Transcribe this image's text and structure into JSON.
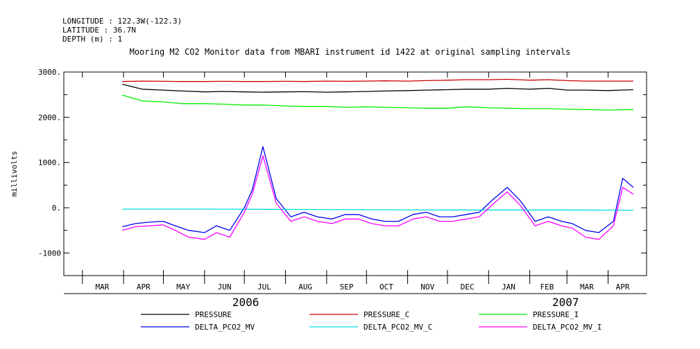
{
  "header": {
    "longitude": "LONGITUDE : 122.3W(-122.3)",
    "latitude": "LATITUDE : 36.7N",
    "depth": "DEPTH (m) : 1"
  },
  "chart_data": {
    "type": "line",
    "title": "Mooring M2 CO2 Monitor data from MBARI instrument id 1422 at original sampling intervals",
    "ylabel": "millivolts",
    "ylim": [
      -1500,
      3000
    ],
    "yticks": [
      -1000,
      0,
      1000,
      2000,
      3000
    ],
    "ytick_labels": [
      "-1000",
      "0.",
      "1000.",
      "2000.",
      "3000."
    ],
    "xlim": [
      "2006-02-15",
      "2007-04-30"
    ],
    "x_month_ticks": [
      "2006-03-01",
      "2006-04-01",
      "2006-05-01",
      "2006-06-01",
      "2006-07-01",
      "2006-08-01",
      "2006-09-01",
      "2006-10-01",
      "2006-11-01",
      "2006-12-01",
      "2007-01-01",
      "2007-02-01",
      "2007-03-01",
      "2007-04-01"
    ],
    "x_month_labels": [
      {
        "label": "MAR",
        "center": "2006-03-16"
      },
      {
        "label": "APR",
        "center": "2006-04-16"
      },
      {
        "label": "MAY",
        "center": "2006-05-16"
      },
      {
        "label": "JUN",
        "center": "2006-06-16"
      },
      {
        "label": "JUL",
        "center": "2006-07-16"
      },
      {
        "label": "AUG",
        "center": "2006-08-16"
      },
      {
        "label": "SEP",
        "center": "2006-09-16"
      },
      {
        "label": "OCT",
        "center": "2006-10-16"
      },
      {
        "label": "NOV",
        "center": "2006-11-16"
      },
      {
        "label": "DEC",
        "center": "2006-12-16"
      },
      {
        "label": "JAN",
        "center": "2007-01-16"
      },
      {
        "label": "FEB",
        "center": "2007-02-14"
      },
      {
        "label": "MAR",
        "center": "2007-03-16"
      },
      {
        "label": "APR",
        "center": "2007-04-12"
      }
    ],
    "year_labels": [
      {
        "label": "2006",
        "center": "2006-07-02"
      },
      {
        "label": "2007",
        "center": "2007-02-28"
      }
    ],
    "series": [
      {
        "name": "PRESSURE",
        "color": "#000000",
        "x": [
          "2006-03-31",
          "2006-04-15",
          "2006-05-01",
          "2006-05-15",
          "2006-06-01",
          "2006-06-15",
          "2006-07-01",
          "2006-07-15",
          "2006-08-01",
          "2006-08-15",
          "2006-09-01",
          "2006-09-15",
          "2006-10-01",
          "2006-10-15",
          "2006-11-01",
          "2006-11-15",
          "2006-12-01",
          "2006-12-15",
          "2007-01-01",
          "2007-01-15",
          "2007-02-01",
          "2007-02-15",
          "2007-03-01",
          "2007-03-15",
          "2007-04-01",
          "2007-04-20"
        ],
        "values": [
          2730,
          2620,
          2600,
          2580,
          2560,
          2570,
          2560,
          2555,
          2560,
          2565,
          2555,
          2560,
          2570,
          2580,
          2590,
          2600,
          2610,
          2620,
          2620,
          2640,
          2620,
          2640,
          2600,
          2600,
          2590,
          2610
        ]
      },
      {
        "name": "PRESSURE_C",
        "color": "#cc0000",
        "x": [
          "2006-03-31",
          "2006-04-15",
          "2006-05-01",
          "2006-05-15",
          "2006-06-01",
          "2006-06-15",
          "2006-07-01",
          "2006-07-15",
          "2006-08-01",
          "2006-08-15",
          "2006-09-01",
          "2006-09-15",
          "2006-10-01",
          "2006-10-15",
          "2006-11-01",
          "2006-11-15",
          "2006-12-01",
          "2006-12-15",
          "2007-01-01",
          "2007-01-15",
          "2007-02-01",
          "2007-02-15",
          "2007-03-01",
          "2007-03-15",
          "2007-04-01",
          "2007-04-20"
        ],
        "values": [
          2790,
          2800,
          2795,
          2790,
          2790,
          2795,
          2790,
          2790,
          2795,
          2790,
          2800,
          2795,
          2800,
          2805,
          2800,
          2810,
          2820,
          2830,
          2830,
          2840,
          2820,
          2830,
          2810,
          2800,
          2800,
          2800
        ]
      },
      {
        "name": "PRESSURE_I",
        "color": "#00ee00",
        "x": [
          "2006-03-31",
          "2006-04-15",
          "2006-05-01",
          "2006-05-15",
          "2006-06-01",
          "2006-06-15",
          "2006-07-01",
          "2006-07-15",
          "2006-08-01",
          "2006-08-15",
          "2006-09-01",
          "2006-09-15",
          "2006-10-01",
          "2006-10-15",
          "2006-11-01",
          "2006-11-15",
          "2006-12-01",
          "2006-12-15",
          "2007-01-01",
          "2007-01-15",
          "2007-02-01",
          "2007-02-15",
          "2007-03-01",
          "2007-03-15",
          "2007-04-01",
          "2007-04-20"
        ],
        "values": [
          2490,
          2360,
          2340,
          2300,
          2300,
          2290,
          2270,
          2270,
          2250,
          2240,
          2240,
          2220,
          2230,
          2220,
          2210,
          2200,
          2200,
          2230,
          2210,
          2200,
          2190,
          2190,
          2180,
          2170,
          2160,
          2170
        ]
      },
      {
        "name": "DELTA_PCO2_MV",
        "color": "#0000ee",
        "x": [
          "2006-03-31",
          "2006-04-10",
          "2006-04-20",
          "2006-05-01",
          "2006-05-10",
          "2006-05-20",
          "2006-06-01",
          "2006-06-10",
          "2006-06-20",
          "2006-07-01",
          "2006-07-07",
          "2006-07-15",
          "2006-07-25",
          "2006-08-05",
          "2006-08-15",
          "2006-08-25",
          "2006-09-05",
          "2006-09-15",
          "2006-09-25",
          "2006-10-05",
          "2006-10-15",
          "2006-10-25",
          "2006-11-05",
          "2006-11-15",
          "2006-11-25",
          "2006-12-05",
          "2006-12-15",
          "2006-12-25",
          "2007-01-05",
          "2007-01-15",
          "2007-01-25",
          "2007-02-05",
          "2007-02-15",
          "2007-02-25",
          "2007-03-05",
          "2007-03-15",
          "2007-03-25",
          "2007-04-05",
          "2007-04-12",
          "2007-04-20"
        ],
        "values": [
          -420,
          -350,
          -320,
          -300,
          -400,
          -500,
          -550,
          -400,
          -500,
          0,
          400,
          1350,
          200,
          -200,
          -100,
          -200,
          -250,
          -150,
          -150,
          -250,
          -300,
          -300,
          -150,
          -100,
          -200,
          -200,
          -150,
          -100,
          200,
          450,
          150,
          -300,
          -200,
          -300,
          -350,
          -500,
          -550,
          -300,
          650,
          450
        ]
      },
      {
        "name": "DELTA_PCO2_MV_C",
        "color": "#00dddd",
        "x": [
          "2006-03-31",
          "2006-06-01",
          "2006-09-01",
          "2006-12-01",
          "2007-03-01",
          "2007-04-20"
        ],
        "values": [
          -30,
          -30,
          -40,
          -50,
          -50,
          -55
        ]
      },
      {
        "name": "DELTA_PCO2_MV_I",
        "color": "#ff00ff",
        "x": [
          "2006-03-31",
          "2006-04-10",
          "2006-04-20",
          "2006-05-01",
          "2006-05-10",
          "2006-05-20",
          "2006-06-01",
          "2006-06-10",
          "2006-06-20",
          "2006-07-01",
          "2006-07-07",
          "2006-07-15",
          "2006-07-25",
          "2006-08-05",
          "2006-08-15",
          "2006-08-25",
          "2006-09-05",
          "2006-09-15",
          "2006-09-25",
          "2006-10-05",
          "2006-10-15",
          "2006-10-25",
          "2006-11-05",
          "2006-11-15",
          "2006-11-25",
          "2006-12-05",
          "2006-12-15",
          "2006-12-25",
          "2007-01-05",
          "2007-01-15",
          "2007-01-25",
          "2007-02-05",
          "2007-02-15",
          "2007-02-25",
          "2007-03-05",
          "2007-03-15",
          "2007-03-25",
          "2007-04-05",
          "2007-04-12",
          "2007-04-20"
        ],
        "values": [
          -500,
          -420,
          -400,
          -380,
          -500,
          -650,
          -700,
          -550,
          -650,
          -100,
          300,
          1150,
          100,
          -300,
          -200,
          -300,
          -350,
          -250,
          -250,
          -350,
          -400,
          -400,
          -250,
          -200,
          -300,
          -300,
          -250,
          -200,
          100,
          350,
          50,
          -400,
          -300,
          -400,
          -450,
          -650,
          -700,
          -400,
          450,
          300
        ]
      }
    ],
    "legend": {
      "placement": "bottom",
      "columns": 3
    }
  }
}
